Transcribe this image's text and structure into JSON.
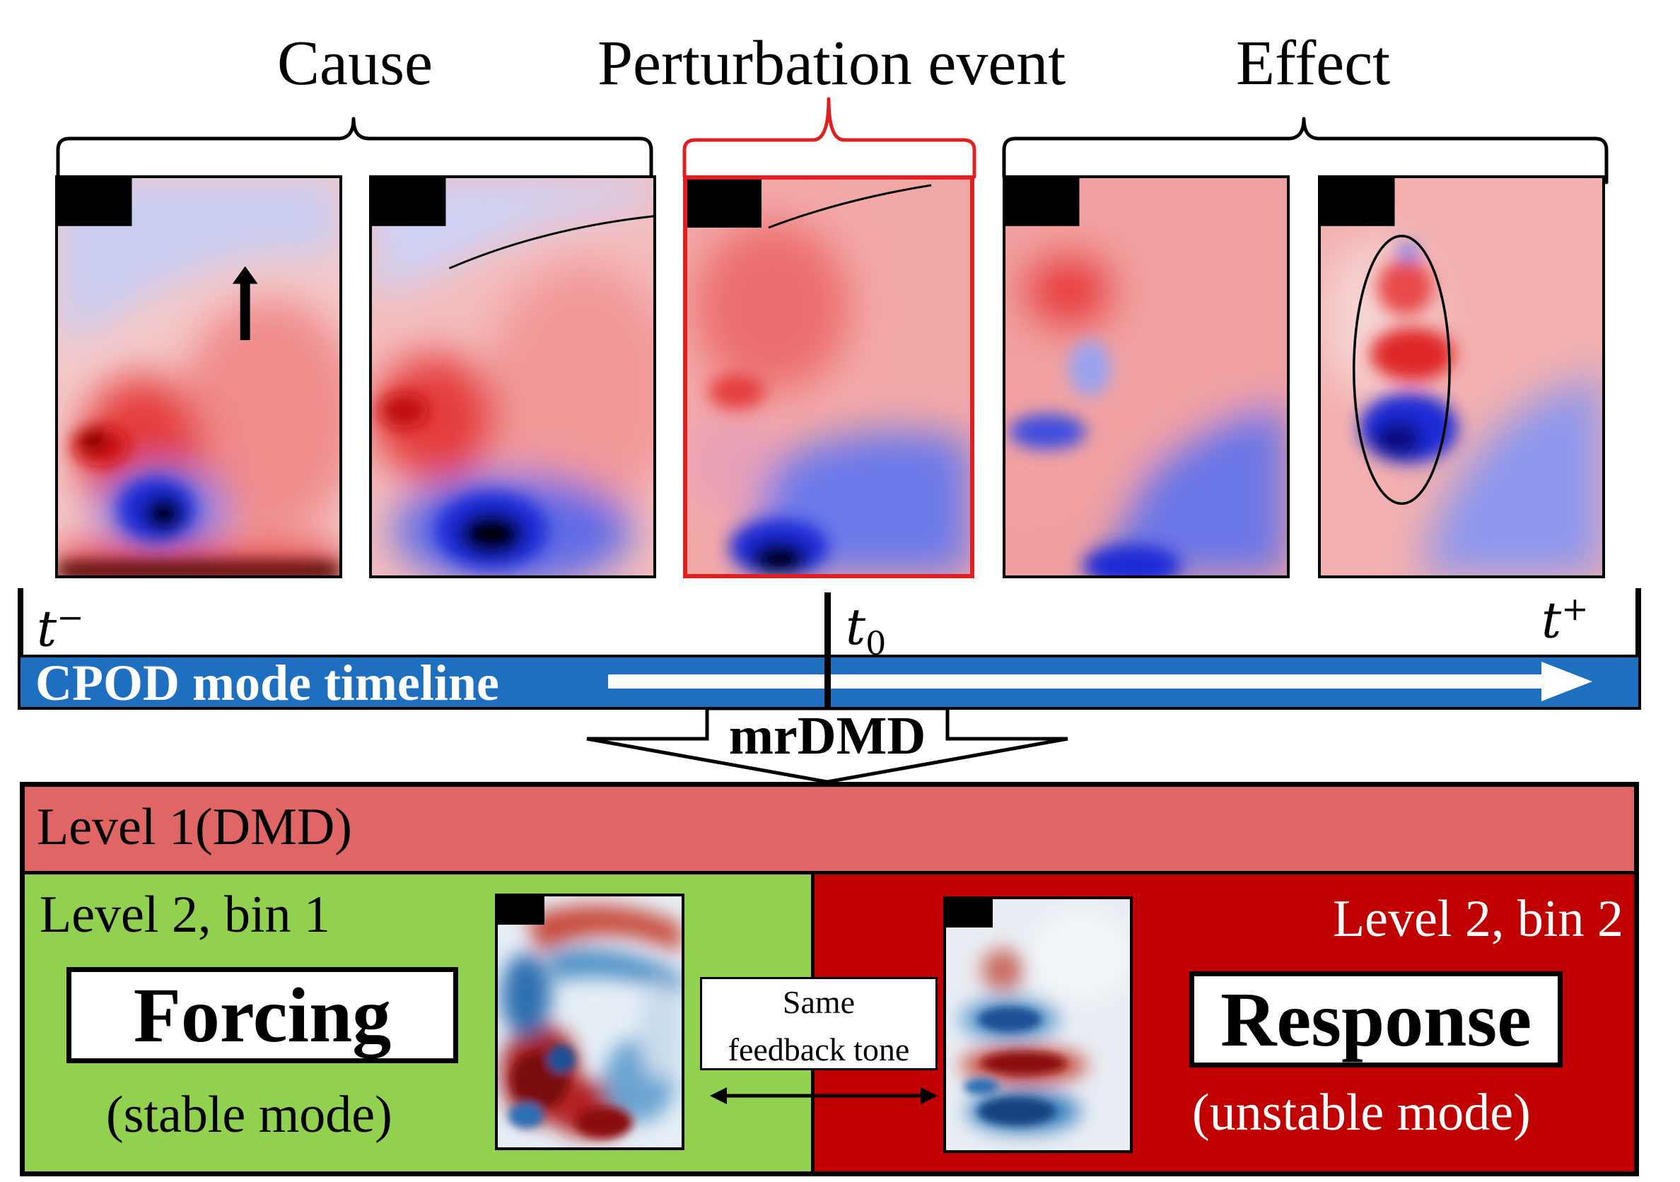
{
  "headers": {
    "cause": "Cause",
    "perturbation": "Perturbation event",
    "effect": "Effect"
  },
  "timeline": {
    "t_minus_base": "t",
    "t_minus_sup": "−",
    "t0_base": "t",
    "t0_sub": "0",
    "t_plus_base": "t",
    "t_plus_sup": "+",
    "label": "CPOD mode timeline"
  },
  "method": "mrDMD",
  "levels": {
    "level1": "Level 1(DMD)",
    "bin1": "Level 2, bin 1",
    "bin2": "Level 2, bin 2"
  },
  "modes": {
    "forcing": "Forcing",
    "forcing_sub": "(stable mode)",
    "response": "Response",
    "response_sub": "(unstable mode)"
  },
  "feedback": {
    "line1": "Same",
    "line2": "feedback tone"
  },
  "colors": {
    "timeline_blue": "#1f6fc0",
    "level1": "#e06565",
    "bin1": "#92d050",
    "bin2": "#c00000",
    "perturbation_red": "#e02020"
  }
}
